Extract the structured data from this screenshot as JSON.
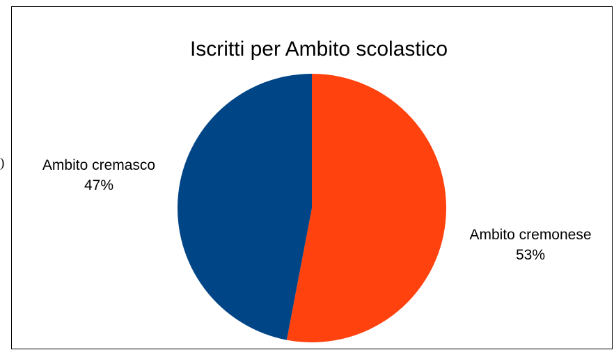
{
  "edge_fragment": ")",
  "chart_data": {
    "type": "pie",
    "title": "Iscritti per Ambito scolastico",
    "slices": [
      {
        "name": "Ambito cremonese",
        "value": 53,
        "label": "53%",
        "color": "#ff420e"
      },
      {
        "name": "Ambito cremasco",
        "value": 47,
        "label": "47%",
        "color": "#004586"
      }
    ],
    "legend": "none",
    "start": "12 o'clock, clockwise"
  }
}
